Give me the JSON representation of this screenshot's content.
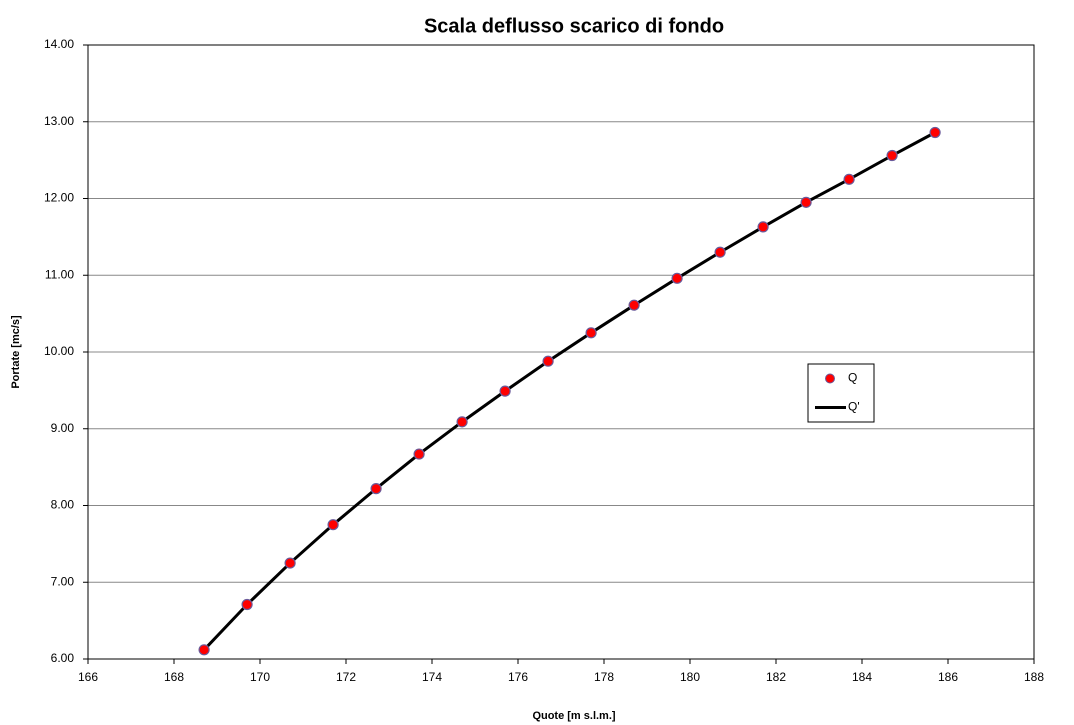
{
  "chart_data": {
    "type": "line",
    "title": "Scala deflusso scarico di fondo",
    "x_label": "Quote [m s.l.m.]",
    "y_label": "Portate [mc/s]",
    "xlim": [
      166,
      188
    ],
    "xticks": [
      166,
      168,
      170,
      172,
      174,
      176,
      178,
      180,
      182,
      184,
      186,
      188
    ],
    "ylim": [
      6,
      14
    ],
    "yticks": [
      {
        "value": 6,
        "label": "6.00"
      },
      {
        "value": 7,
        "label": "7.00"
      },
      {
        "value": 8,
        "label": "8.00"
      },
      {
        "value": 9,
        "label": "9.00"
      },
      {
        "value": 10,
        "label": "10.00"
      },
      {
        "value": 11,
        "label": "11.00"
      },
      {
        "value": 12,
        "label": "12.00"
      },
      {
        "value": 13,
        "label": "13.00"
      },
      {
        "value": 14,
        "label": "14.00"
      }
    ],
    "grid": true,
    "legend": "right",
    "series": [
      {
        "name": "Q",
        "style": "markers",
        "color": "#ff0000",
        "edge_color": "#6a5a9a",
        "x": [
          168.7,
          169.7,
          170.7,
          171.7,
          172.7,
          173.7,
          174.7,
          175.7,
          176.7,
          177.7,
          178.7,
          179.7,
          180.7,
          181.7,
          182.7,
          183.7,
          184.7,
          185.7
        ],
        "values": [
          6.12,
          6.71,
          7.25,
          7.75,
          8.22,
          8.67,
          9.09,
          9.49,
          9.88,
          10.25,
          10.61,
          10.96,
          11.3,
          11.63,
          11.95,
          12.25,
          12.56,
          12.86
        ]
      },
      {
        "name": "Q'",
        "style": "line",
        "color": "#000000",
        "x": [
          168.7,
          169.7,
          170.7,
          171.7,
          172.7,
          173.7,
          174.7,
          175.7,
          176.7,
          177.7,
          178.7,
          179.7,
          180.7,
          181.7,
          182.7,
          183.7,
          184.7,
          185.7
        ],
        "values": [
          6.12,
          6.71,
          7.25,
          7.75,
          8.22,
          8.67,
          9.09,
          9.49,
          9.88,
          10.25,
          10.61,
          10.96,
          11.3,
          11.63,
          11.95,
          12.25,
          12.56,
          12.86
        ]
      }
    ]
  }
}
